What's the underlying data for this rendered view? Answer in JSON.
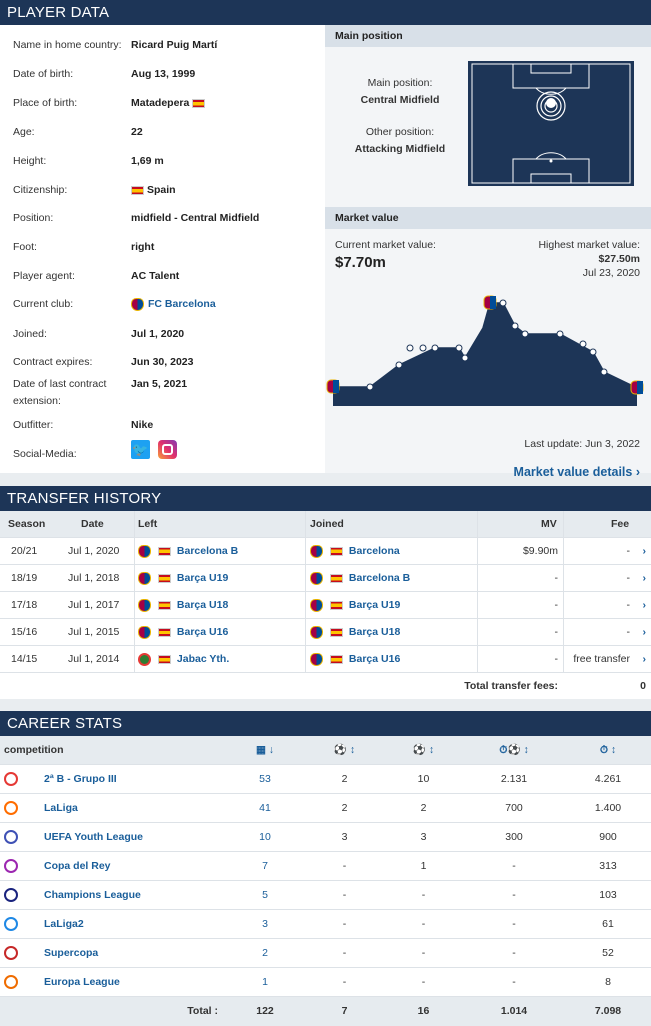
{
  "player_data": {
    "header": "PLAYER DATA",
    "rows": [
      {
        "label": "Name in home country:",
        "value": "Ricard Puig Martí"
      },
      {
        "label": "Date of birth:",
        "value": "Aug 13, 1999"
      },
      {
        "label": "Place of birth:",
        "value": "Matadepera"
      },
      {
        "label": "Age:",
        "value": "22"
      },
      {
        "label": "Height:",
        "value": "1,69 m"
      },
      {
        "label": "Citizenship:",
        "value": "Spain"
      },
      {
        "label": "Position:",
        "value": "midfield - Central Midfield"
      },
      {
        "label": "Foot:",
        "value": "right"
      },
      {
        "label": "Player agent:",
        "value": "AC Talent"
      },
      {
        "label": "Current club:",
        "value": "FC Barcelona"
      },
      {
        "label": "Joined:",
        "value": "Jul 1, 2020"
      },
      {
        "label": "Contract expires:",
        "value": "Jun 30, 2023"
      },
      {
        "label": "Date of last contract extension:",
        "value": "Jan 5, 2021"
      },
      {
        "label": "Outfitter:",
        "value": "Nike"
      },
      {
        "label": "Social-Media:",
        "value": ""
      }
    ],
    "main_position": {
      "header": "Main position",
      "main_label": "Main position:",
      "main_value": "Central Midfield",
      "other_label": "Other position:",
      "other_value": "Attacking Midfield"
    },
    "market_value": {
      "header": "Market value",
      "current_label": "Current market value:",
      "current_value": "$7.70m",
      "highest_label": "Highest market value:",
      "highest_value": "$27.50m",
      "highest_date": "Jul 23, 2020",
      "last_update": "Last update: Jun 3, 2022",
      "details_link": "Market value details"
    }
  },
  "transfer_history": {
    "header": "TRANSFER HISTORY",
    "columns": [
      "Season",
      "Date",
      "Left",
      "Joined",
      "MV",
      "Fee"
    ],
    "rows": [
      {
        "season": "20/21",
        "date": "Jul 1, 2020",
        "left": "Barcelona B",
        "joined": "Barcelona",
        "mv": "$9.90m",
        "fee": "-"
      },
      {
        "season": "18/19",
        "date": "Jul 1, 2018",
        "left": "Barça U19",
        "joined": "Barcelona B",
        "mv": "-",
        "fee": "-"
      },
      {
        "season": "17/18",
        "date": "Jul 1, 2017",
        "left": "Barça U18",
        "joined": "Barça U19",
        "mv": "-",
        "fee": "-"
      },
      {
        "season": "15/16",
        "date": "Jul 1, 2015",
        "left": "Barça U16",
        "joined": "Barça U18",
        "mv": "-",
        "fee": "-"
      },
      {
        "season": "14/15",
        "date": "Jul 1, 2014",
        "left": "Jabac Yth.",
        "joined": "Barça U16",
        "mv": "-",
        "fee": "free transfer"
      }
    ],
    "total_label": "Total transfer fees:",
    "total_value": "0"
  },
  "career_stats": {
    "header": "CAREER STATS",
    "competition_label": "competition",
    "rows": [
      {
        "name": "2ª B - Grupo III",
        "apps": "53",
        "goals": "2",
        "assists": "10",
        "min_per_goal": "2.131",
        "minutes": "4.261"
      },
      {
        "name": "LaLiga",
        "apps": "41",
        "goals": "2",
        "assists": "2",
        "min_per_goal": "700",
        "minutes": "1.400"
      },
      {
        "name": "UEFA Youth League",
        "apps": "10",
        "goals": "3",
        "assists": "3",
        "min_per_goal": "300",
        "minutes": "900"
      },
      {
        "name": "Copa del Rey",
        "apps": "7",
        "goals": "-",
        "assists": "1",
        "min_per_goal": "-",
        "minutes": "313"
      },
      {
        "name": "Champions League",
        "apps": "5",
        "goals": "-",
        "assists": "-",
        "min_per_goal": "-",
        "minutes": "103"
      },
      {
        "name": "LaLiga2",
        "apps": "3",
        "goals": "-",
        "assists": "-",
        "min_per_goal": "-",
        "minutes": "61"
      },
      {
        "name": "Supercopa",
        "apps": "2",
        "goals": "-",
        "assists": "-",
        "min_per_goal": "-",
        "minutes": "52"
      },
      {
        "name": "Europa League",
        "apps": "1",
        "goals": "-",
        "assists": "-",
        "min_per_goal": "-",
        "minutes": "8"
      }
    ],
    "total_label": "Total :",
    "totals": {
      "apps": "122",
      "goals": "7",
      "assists": "16",
      "min_per_goal": "1.014",
      "minutes": "7.098"
    }
  },
  "colors": {
    "header": "#1d3557",
    "link": "#1a5e9a",
    "chart_fill": "#1d3557"
  }
}
